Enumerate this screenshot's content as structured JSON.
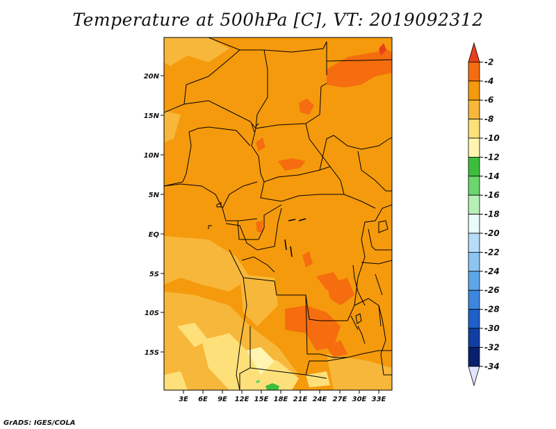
{
  "title": "Temperature at 500hPa [C], VT: 2019092312",
  "credit": "GrADS: IGES/COLA",
  "map": {
    "lat_labels": [
      "20N",
      "15N",
      "10N",
      "5N",
      "EQ",
      "5S",
      "10S",
      "15S"
    ],
    "lon_labels": [
      "3E",
      "6E",
      "9E",
      "12E",
      "15E",
      "18E",
      "21E",
      "24E",
      "27E",
      "30E",
      "33E"
    ]
  },
  "colorbar": {
    "labels": [
      "-2",
      "-4",
      "-6",
      "-8",
      "-10",
      "-12",
      "-14",
      "-16",
      "-18",
      "-20",
      "-22",
      "-24",
      "-26",
      "-28",
      "-30",
      "-32",
      "-34"
    ],
    "colors": [
      "#e8401c",
      "#f56d0f",
      "#f59a0c",
      "#f7b73a",
      "#fde07a",
      "#fff5b0",
      "#3cbe3c",
      "#6cd66c",
      "#b6f0b6",
      "#e9fbfb",
      "#b7dcf7",
      "#8cc4f2",
      "#5ea6ea",
      "#3d86df",
      "#1e5fc9",
      "#0f3fa3",
      "#0a1f6e",
      "#e0e4ff"
    ]
  }
}
